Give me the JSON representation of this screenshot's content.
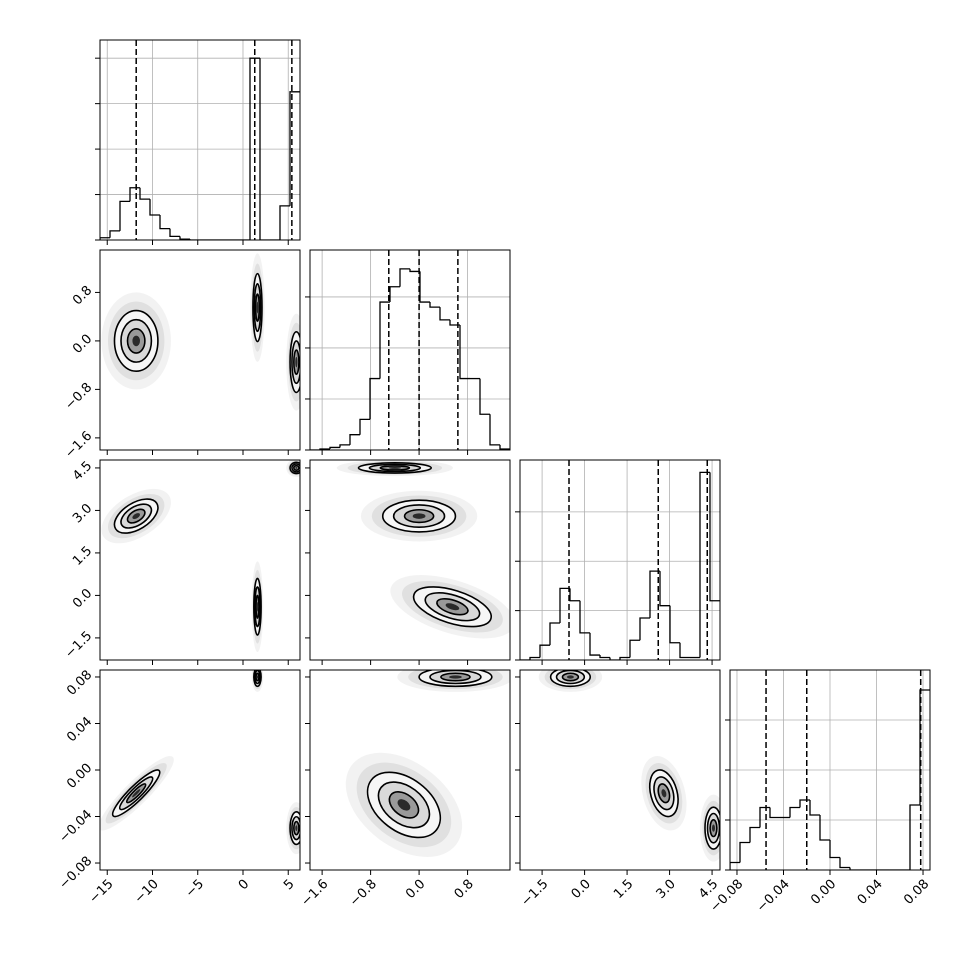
{
  "chart_data": {
    "type": "corner",
    "grid": true,
    "params": [
      {
        "xlim": [
          -15.8,
          6.3
        ],
        "xticks": [
          {
            "value": -15,
            "label": "−15"
          },
          {
            "value": -10,
            "label": "−10"
          },
          {
            "value": -5,
            "label": "−5"
          },
          0,
          5
        ],
        "quantiles": [
          -11.8,
          1.3,
          5.4
        ],
        "bins": [
          -15.8,
          -14.695,
          -13.59,
          -12.485,
          -11.38,
          -10.275,
          -9.17,
          -8.065,
          -6.96,
          -5.855,
          -4.75,
          -3.645,
          -2.54,
          -1.435,
          -0.33,
          0.775,
          1.88,
          2.985,
          4.09,
          5.195,
          6.3
        ],
        "values": [
          0.05,
          0.2,
          0.85,
          1.15,
          0.9,
          0.55,
          0.25,
          0.08,
          0.02,
          0,
          0,
          0,
          0,
          0,
          0,
          4.0,
          0,
          0,
          0.75,
          3.26
        ],
        "ylim": [
          0,
          4.4
        ],
        "yticks": [
          0,
          1,
          2,
          3,
          4
        ],
        "pairs": []
      },
      {
        "xlim": [
          -1.8,
          1.5
        ],
        "xticks": [
          {
            "value": -1.6,
            "label": "−1.6"
          },
          {
            "value": -0.8,
            "label": "−0.8"
          },
          {
            "value": 0,
            "label": "0.0"
          },
          0.8
        ],
        "quantiles": [
          -0.5,
          0.0,
          0.64
        ],
        "bins": [
          -1.8,
          -1.635,
          -1.47,
          -1.305,
          -1.14,
          -0.975,
          -0.81,
          -0.645,
          -0.48,
          -0.315,
          -0.15,
          0.015,
          0.18,
          0.345,
          0.51,
          0.675,
          0.84,
          1.005,
          1.17,
          1.335,
          1.5
        ],
        "values": [
          0,
          0.02,
          0.05,
          0.1,
          0.3,
          0.6,
          1.4,
          2.9,
          3.2,
          3.55,
          3.5,
          2.9,
          2.8,
          2.55,
          2.45,
          1.4,
          1.4,
          0.7,
          0.1,
          0.02
        ],
        "ylim": [
          0,
          3.92
        ],
        "yticks": [
          0,
          1,
          2,
          3
        ],
        "pairs": [
          {
            "modes": [
              {
                "x": -11.8,
                "y": 0.0,
                "sx": 1.2,
                "sy": 0.25,
                "rho": 0
              },
              {
                "x": 1.6,
                "y": 0.55,
                "sx": 0.25,
                "sy": 0.28,
                "rho": 0
              },
              {
                "x": 5.9,
                "y": -0.35,
                "sx": 0.35,
                "sy": 0.25,
                "rho": 0
              }
            ]
          }
        ]
      },
      {
        "xlim": [
          -2.28,
          4.78
        ],
        "xticks": [
          {
            "value": -1.5,
            "label": "−1.5"
          },
          {
            "value": 0,
            "label": "0.0"
          },
          1.5,
          {
            "value": 3,
            "label": "3.0"
          },
          4.5
        ],
        "quantiles": [
          -0.55,
          2.6,
          4.33
        ],
        "bins": [
          -2.28,
          -1.927,
          -1.574,
          -1.221,
          -0.868,
          -0.515,
          -0.162,
          0.191,
          0.544,
          0.897,
          1.25,
          1.603,
          1.956,
          2.309,
          2.662,
          3.015,
          3.368,
          3.721,
          4.074,
          4.427,
          4.78
        ],
        "values": [
          0,
          0.05,
          0.3,
          0.75,
          1.45,
          1.2,
          0.55,
          0.1,
          0.05,
          0,
          0.05,
          0.4,
          0.85,
          1.8,
          1.1,
          0.35,
          0.05,
          0.05,
          3.8,
          1.2
        ],
        "ylim": [
          0,
          4.05
        ],
        "yticks": [
          0,
          1,
          2,
          3
        ],
        "pairs": [
          {
            "modes": [
              {
                "x": -11.8,
                "y": 2.8,
                "sx": 1.2,
                "sy": 0.3,
                "rho": 0.5
              },
              {
                "x": 1.6,
                "y": -0.4,
                "sx": 0.2,
                "sy": 0.5,
                "rho": 0
              },
              {
                "x": 5.9,
                "y": 4.5,
                "sx": 0.35,
                "sy": 0.1,
                "rho": 0
              }
            ]
          },
          {
            "modes": [
              {
                "x": -0.4,
                "y": 4.5,
                "sx": 0.3,
                "sy": 0.09,
                "rho": 0
              },
              {
                "x": 0.0,
                "y": 2.8,
                "sx": 0.3,
                "sy": 0.28,
                "rho": 0
              },
              {
                "x": 0.55,
                "y": -0.4,
                "sx": 0.32,
                "sy": 0.35,
                "rho": -0.5
              }
            ]
          }
        ]
      },
      {
        "xlim": [
          -0.086,
          0.086
        ],
        "xticks": [
          {
            "value": -0.08,
            "label": "−0.08"
          },
          {
            "value": -0.04,
            "label": "−0.04"
          },
          {
            "value": 0,
            "label": "0.00"
          },
          0.04,
          0.08
        ],
        "quantiles": [
          -0.055,
          -0.02,
          0.078
        ],
        "bins": [
          -0.086,
          -0.0774,
          -0.0688,
          -0.0602,
          -0.0516,
          -0.043,
          -0.0344,
          -0.0258,
          -0.0172,
          -0.0086,
          0,
          0.0086,
          0.0172,
          0.0258,
          0.0344,
          0.043,
          0.0516,
          0.0602,
          0.0688,
          0.0774,
          0.086
        ],
        "values": [
          0.15,
          0.55,
          0.85,
          1.25,
          1.05,
          1.05,
          1.25,
          1.4,
          1.1,
          0.6,
          0.25,
          0.05,
          0,
          0,
          0,
          0,
          0,
          0,
          1.3,
          3.6
        ],
        "ylim": [
          0,
          4
        ],
        "yticks": [
          0,
          1,
          2,
          3
        ],
        "pairs": [
          {
            "modes": [
              {
                "x": -11.8,
                "y": -0.02,
                "sx": 1.3,
                "sy": 0.01,
                "rho": 0.9
              },
              {
                "x": 1.6,
                "y": 0.08,
                "sx": 0.2,
                "sy": 0.004,
                "rho": 0
              },
              {
                "x": 5.9,
                "y": -0.05,
                "sx": 0.35,
                "sy": 0.007,
                "rho": 0
              }
            ]
          },
          {
            "modes": [
              {
                "x": 0.6,
                "y": 0.08,
                "sx": 0.3,
                "sy": 0.004,
                "rho": 0
              },
              {
                "x": -0.25,
                "y": -0.03,
                "sx": 0.3,
                "sy": 0.014,
                "rho": -0.4
              }
            ]
          },
          {
            "modes": [
              {
                "x": -0.5,
                "y": 0.08,
                "sx": 0.35,
                "sy": 0.004,
                "rho": 0
              },
              {
                "x": 2.8,
                "y": -0.02,
                "sx": 0.25,
                "sy": 0.01,
                "rho": -0.3
              },
              {
                "x": 4.55,
                "y": -0.05,
                "sx": 0.15,
                "sy": 0.009,
                "rho": 0
              }
            ]
          }
        ]
      }
    ]
  }
}
